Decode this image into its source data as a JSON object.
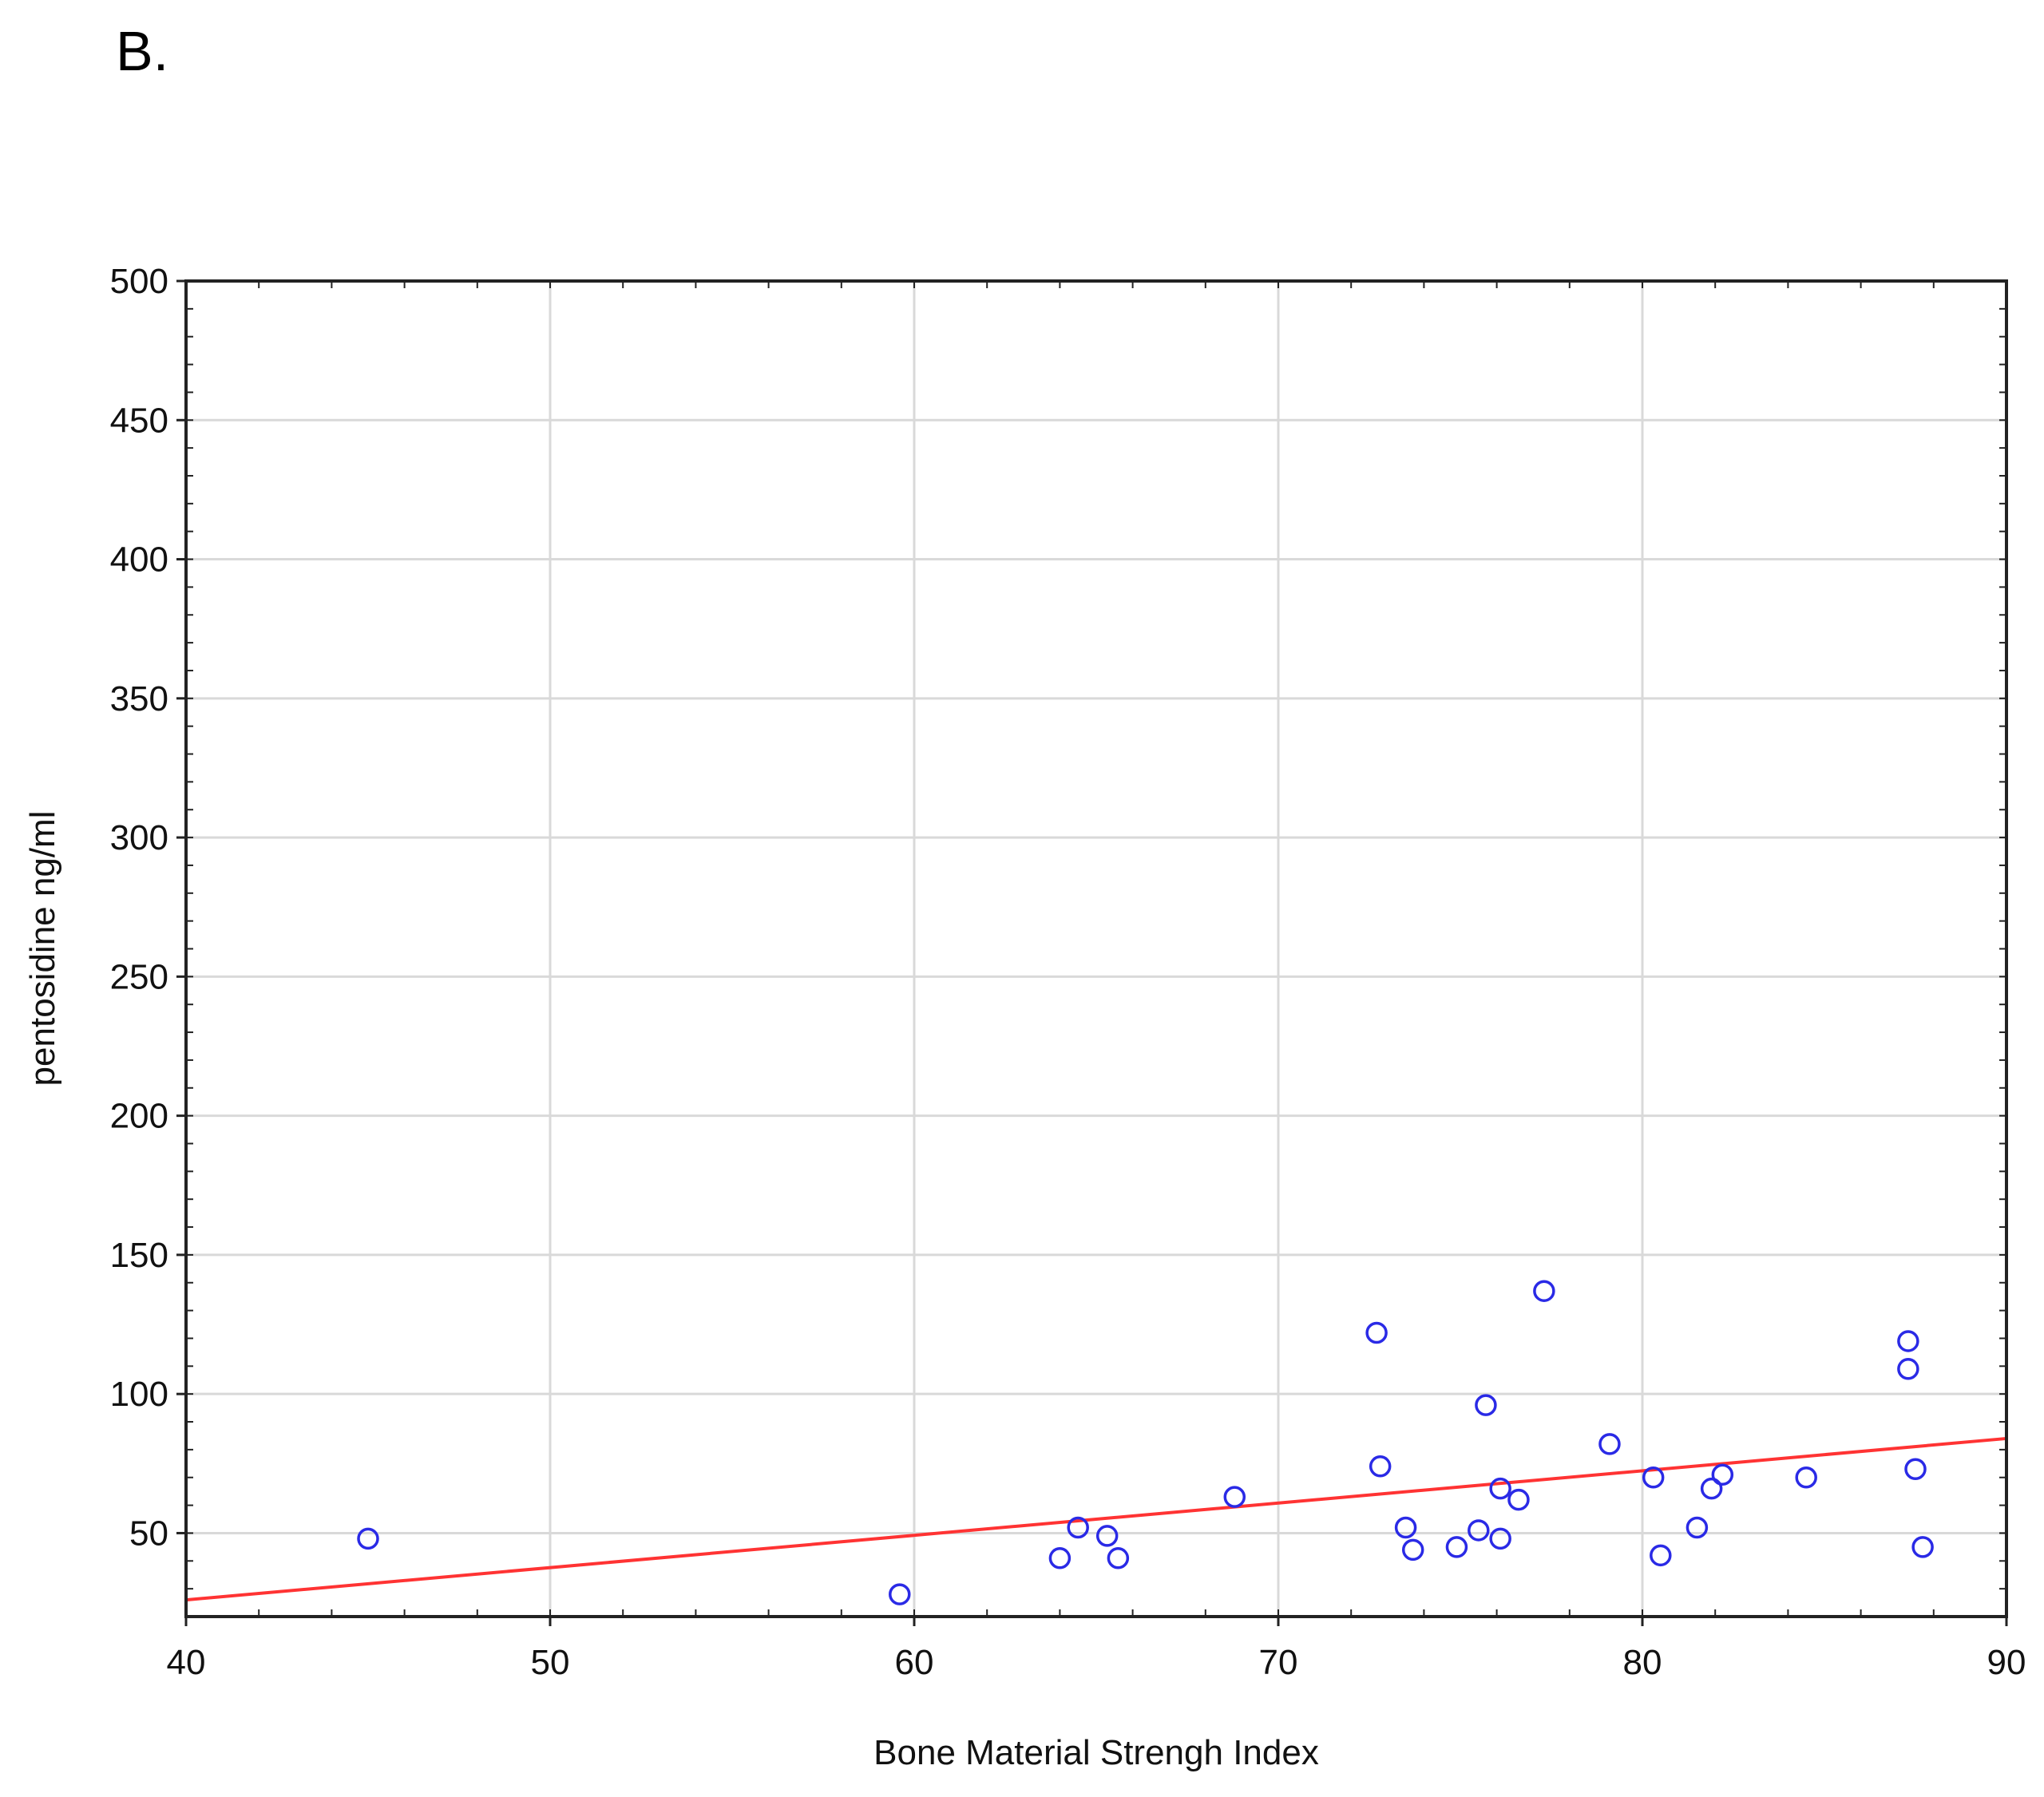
{
  "panel_label": "B.",
  "chart_data": {
    "type": "scatter",
    "xlabel": "Bone Material Strengh Index",
    "ylabel": "pentosidine ng/ml",
    "xlim": [
      40,
      90
    ],
    "ylim": [
      20,
      500
    ],
    "xticks": [
      40,
      50,
      60,
      70,
      80,
      90
    ],
    "yticks": [
      50,
      100,
      150,
      200,
      250,
      300,
      350,
      400,
      450,
      500
    ],
    "grid": true,
    "marker": "open-circle",
    "marker_color": "#2a2ae6",
    "line_color": "#ff3333",
    "fit_line": {
      "x": [
        40,
        90
      ],
      "y": [
        26,
        84
      ]
    },
    "points": [
      {
        "x": 45.0,
        "y": 48
      },
      {
        "x": 59.6,
        "y": 28
      },
      {
        "x": 64.0,
        "y": 41
      },
      {
        "x": 64.5,
        "y": 52
      },
      {
        "x": 65.3,
        "y": 49
      },
      {
        "x": 65.6,
        "y": 41
      },
      {
        "x": 68.8,
        "y": 63
      },
      {
        "x": 72.7,
        "y": 122
      },
      {
        "x": 72.8,
        "y": 74
      },
      {
        "x": 73.5,
        "y": 52
      },
      {
        "x": 73.7,
        "y": 44
      },
      {
        "x": 74.9,
        "y": 45
      },
      {
        "x": 75.5,
        "y": 51
      },
      {
        "x": 75.7,
        "y": 96
      },
      {
        "x": 76.1,
        "y": 66
      },
      {
        "x": 76.1,
        "y": 48
      },
      {
        "x": 76.6,
        "y": 62
      },
      {
        "x": 77.3,
        "y": 137
      },
      {
        "x": 79.1,
        "y": 82
      },
      {
        "x": 80.3,
        "y": 70
      },
      {
        "x": 80.5,
        "y": 42
      },
      {
        "x": 81.5,
        "y": 52
      },
      {
        "x": 81.9,
        "y": 66
      },
      {
        "x": 82.2,
        "y": 71
      },
      {
        "x": 84.5,
        "y": 70
      },
      {
        "x": 87.3,
        "y": 119
      },
      {
        "x": 87.3,
        "y": 109
      },
      {
        "x": 87.5,
        "y": 73
      },
      {
        "x": 87.7,
        "y": 45
      }
    ]
  }
}
